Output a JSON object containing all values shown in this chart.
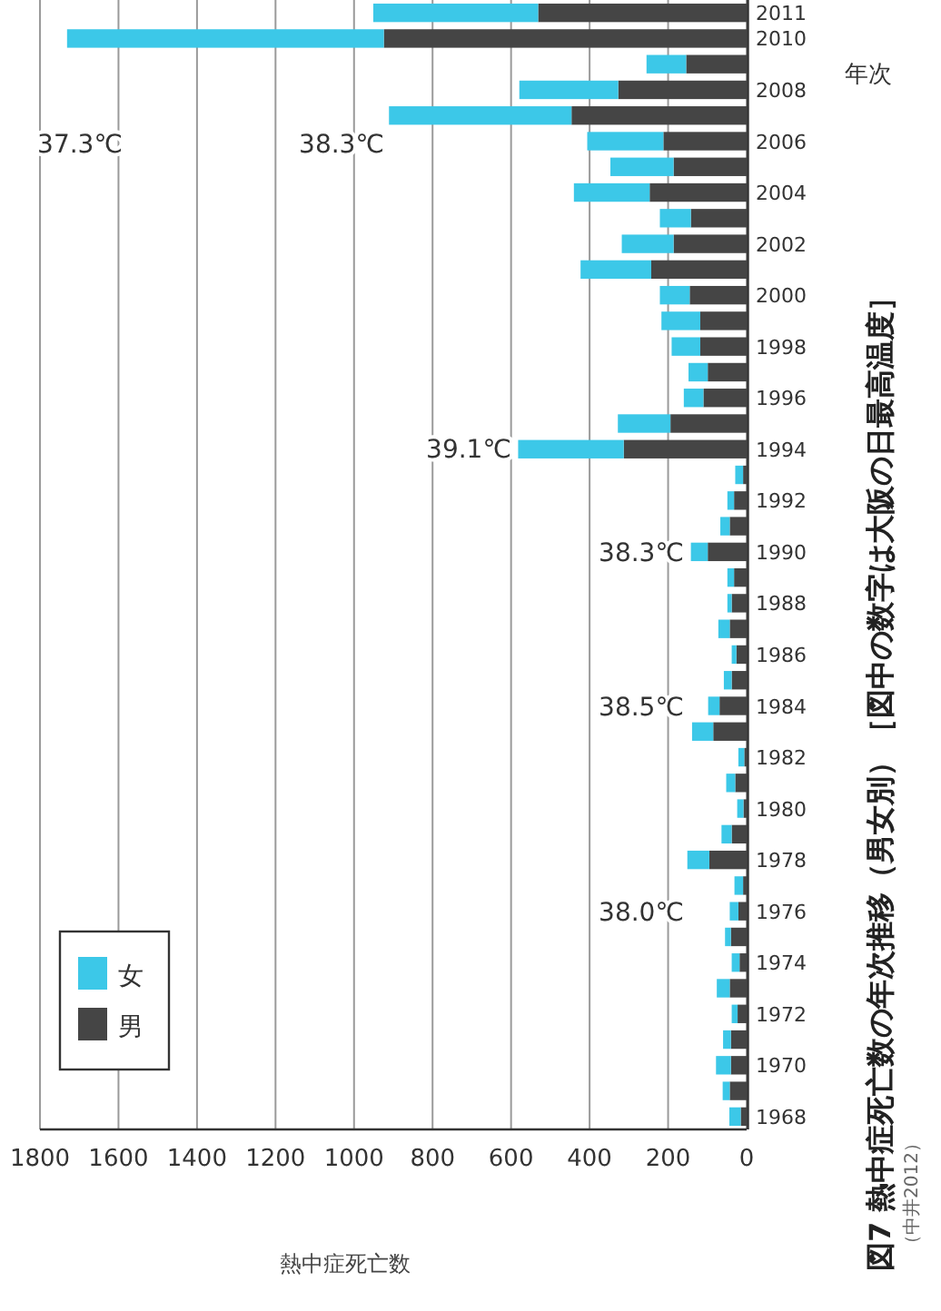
{
  "chart_data": {
    "type": "bar",
    "stacked": true,
    "orientation": "horizontal",
    "title": "図7 熱中症死亡数の年次推移（男女別）［図中の数字は大阪の日最高温度］",
    "xlabel": "熱中症死亡数",
    "ylabel": "年次",
    "categories": [
      "2011",
      "2010",
      null,
      "2008",
      null,
      "2006",
      null,
      "2004",
      null,
      "2002",
      null,
      "2000",
      null,
      "1998",
      null,
      "1996",
      null,
      "1994",
      null,
      "1992",
      null,
      "1990",
      null,
      "1988",
      null,
      "1986",
      null,
      "1984",
      null,
      "1982",
      null,
      "1980",
      null,
      "1978",
      null,
      "1976",
      null,
      "1974",
      null,
      "1972",
      null,
      "1970",
      null,
      "1968"
    ],
    "series": [
      {
        "name": "男",
        "color": "#454545",
        "values": [
          531,
          924,
          154,
          327,
          446,
          212,
          186,
          247,
          142,
          186,
          243,
          145,
          118,
          118,
          99,
          110,
          194,
          313,
          9,
          32,
          43,
          99,
          32,
          38,
          43,
          26,
          38,
          69,
          85,
          6,
          29,
          8,
          38,
          95,
          9,
          21,
          40,
          18,
          43,
          23,
          40,
          40,
          43,
          15
        ]
      },
      {
        "name": "女",
        "color": "#3cc8e8",
        "values": [
          420,
          807,
          101,
          252,
          465,
          194,
          161,
          193,
          79,
          132,
          180,
          76,
          99,
          73,
          49,
          50,
          134,
          269,
          20,
          17,
          24,
          43,
          17,
          11,
          29,
          12,
          20,
          29,
          54,
          15,
          23,
          16,
          26,
          56,
          22,
          22,
          15,
          20,
          33,
          15,
          20,
          38,
          18,
          29
        ]
      }
    ],
    "xlim": [
      1800,
      0
    ],
    "xticks": [
      0,
      200,
      400,
      600,
      800,
      1000,
      1200,
      1400,
      1600,
      1800
    ],
    "grid": "x",
    "legend": "bottom left",
    "annotations": [
      "37.3℃",
      "38.3℃",
      "39.1℃",
      "38.3℃",
      "38.5℃",
      "38.0℃",
      "（中井2012）"
    ]
  }
}
